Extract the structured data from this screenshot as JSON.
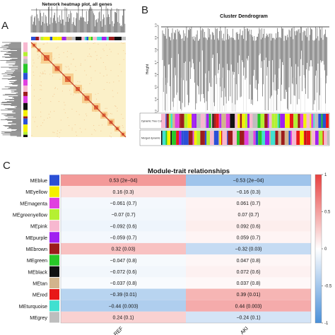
{
  "panels": {
    "a": {
      "letter": "A",
      "title": "Network heatmap plot, all genes"
    },
    "b": {
      "letter": "B",
      "title": "Cluster Dendrogram",
      "ylabel": "Height",
      "yticks": [
        "1.0",
        "0.9",
        "0.8",
        "0.7",
        "0.6",
        "0.5",
        "0.4",
        "0.3"
      ],
      "row_labels": [
        "Dynamic Tree Cut",
        "Merged dynamic"
      ]
    },
    "c": {
      "letter": "C",
      "title": "Module-trait relationships"
    }
  },
  "colors": {
    "negative": "#4a90d9",
    "neutral": "#ffffff",
    "positive": "#e8413f",
    "heatmap_bg": "#fbf0c8",
    "heatmap_hot": "#d9481c"
  },
  "chart_data": {
    "type": "heatmap",
    "title": "Module-trait relationships",
    "columns": [
      "REF",
      "AKI"
    ],
    "colorbar": {
      "range": [
        -1,
        1
      ],
      "ticks": [
        "1",
        "0.5",
        "0",
        "-0.5",
        "-1"
      ]
    },
    "rows": [
      {
        "module": "MEblue",
        "swatch": "#2b50d6",
        "values": [
          0.53,
          -0.53
        ],
        "labels": [
          "0.53 (2e−04)",
          "−0.53 (2e−04)"
        ]
      },
      {
        "module": "MEyellow",
        "swatch": "#f5f000",
        "values": [
          0.16,
          -0.16
        ],
        "labels": [
          "0.16 (0.3)",
          "−0.16 (0.3)"
        ]
      },
      {
        "module": "MEmagenta",
        "swatch": "#e040e0",
        "values": [
          -0.061,
          0.061
        ],
        "labels": [
          "−0.061 (0.7)",
          "0.061 (0.7)"
        ]
      },
      {
        "module": "MEgreenyellow",
        "swatch": "#b5f032",
        "values": [
          -0.07,
          0.07
        ],
        "labels": [
          "−0.07 (0.7)",
          "0.07 (0.7)"
        ]
      },
      {
        "module": "MEpink",
        "swatch": "#f7b8d0",
        "values": [
          -0.092,
          0.092
        ],
        "labels": [
          "−0.092 (0.6)",
          "0.092 (0.6)"
        ]
      },
      {
        "module": "MEpurple",
        "swatch": "#a020f0",
        "values": [
          -0.059,
          0.059
        ],
        "labels": [
          "−0.059 (0.7)",
          "0.059 (0.7)"
        ]
      },
      {
        "module": "MEbrown",
        "swatch": "#9c1c1c",
        "values": [
          0.32,
          -0.32
        ],
        "labels": [
          "0.32 (0.03)",
          "−0.32 (0.03)"
        ]
      },
      {
        "module": "MEgreen",
        "swatch": "#28c828",
        "values": [
          -0.047,
          0.047
        ],
        "labels": [
          "−0.047 (0.8)",
          "0.047 (0.8)"
        ]
      },
      {
        "module": "MEblack",
        "swatch": "#111111",
        "values": [
          -0.072,
          0.072
        ],
        "labels": [
          "−0.072 (0.6)",
          "0.072 (0.6)"
        ]
      },
      {
        "module": "MEtan",
        "swatch": "#d2b48c",
        "values": [
          -0.037,
          0.037
        ],
        "labels": [
          "−0.037 (0.8)",
          "0.037 (0.8)"
        ]
      },
      {
        "module": "MEred",
        "swatch": "#e81818",
        "values": [
          -0.39,
          0.39
        ],
        "labels": [
          "−0.39 (0.01)",
          "0.39 (0.01)"
        ]
      },
      {
        "module": "MEturquoise",
        "swatch": "#40e0d0",
        "values": [
          -0.44,
          0.44
        ],
        "labels": [
          "−0.44 (0.003)",
          "0.44 (0.003)"
        ]
      },
      {
        "module": "MEgrey",
        "swatch": "#bebebe",
        "values": [
          0.24,
          -0.24
        ],
        "labels": [
          "0.24 (0.1)",
          "−0.24 (0.1)"
        ]
      }
    ]
  }
}
